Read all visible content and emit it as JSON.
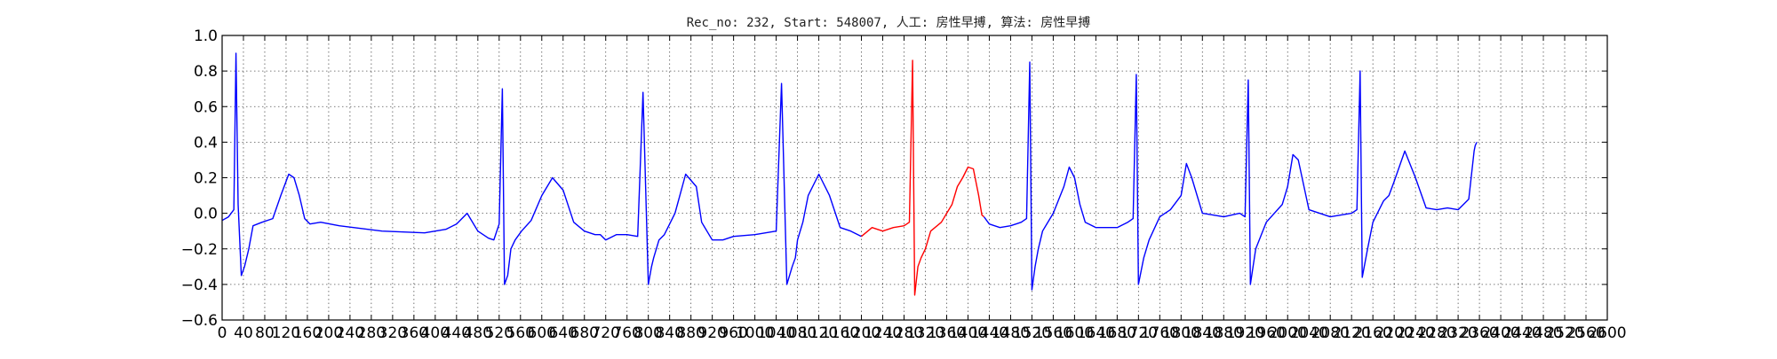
{
  "chart_data": {
    "type": "line",
    "title": "Rec_no: 232, Start: 548007, 人工: 房性早搏, 算法: 房性早搏",
    "xlabel": "",
    "ylabel": "",
    "ylim": [
      -0.6,
      1.0
    ],
    "xlim": [
      0,
      2600
    ],
    "grid": true,
    "y_ticks": [
      "−0.6",
      "−0.4",
      "−0.2",
      "0.0",
      "0.2",
      "0.4",
      "0.6",
      "0.8",
      "1.0"
    ],
    "y_tick_values": [
      -0.6,
      -0.4,
      -0.2,
      0.0,
      0.2,
      0.4,
      0.6,
      0.8,
      1.0
    ],
    "x_ticks": [
      "0",
      "40",
      "80",
      "120",
      "160",
      "200",
      "240",
      "280",
      "320",
      "360",
      "400",
      "440",
      "480",
      "520",
      "560",
      "600",
      "640",
      "680",
      "720",
      "760",
      "800",
      "840",
      "880",
      "920",
      "960",
      "1000",
      "1040",
      "1080",
      "1120",
      "1160",
      "1200",
      "1240",
      "1280",
      "1320",
      "1360",
      "1400",
      "1440",
      "1480",
      "1520",
      "1560",
      "1600",
      "1640",
      "1680",
      "1720",
      "1760",
      "1800",
      "1840",
      "1880",
      "1920",
      "1960",
      "2000",
      "2040",
      "2080",
      "2120",
      "2160",
      "2200",
      "2240",
      "2280",
      "2320",
      "2360",
      "2400",
      "2440",
      "2480",
      "2520",
      "2560",
      "2600"
    ],
    "x_tick_values": [
      0,
      40,
      80,
      120,
      160,
      200,
      240,
      280,
      320,
      360,
      400,
      440,
      480,
      520,
      560,
      600,
      640,
      680,
      720,
      760,
      800,
      840,
      880,
      920,
      960,
      1000,
      1040,
      1080,
      1120,
      1160,
      1200,
      1240,
      1280,
      1320,
      1360,
      1400,
      1440,
      1480,
      1520,
      1560,
      1600,
      1640,
      1680,
      1720,
      1760,
      1800,
      1840,
      1880,
      1920,
      1960,
      2000,
      2040,
      2080,
      2120,
      2160,
      2200,
      2240,
      2280,
      2320,
      2360,
      2400,
      2440,
      2480,
      2520,
      2560,
      2600
    ],
    "series": [
      {
        "color": "#0000ff",
        "x": [
          0,
          12,
          22,
          26,
          30,
          36,
          42,
          50,
          58,
          75,
          95,
          110,
          125,
          135,
          145,
          155,
          165,
          185,
          220,
          300,
          380,
          420,
          440,
          460,
          480,
          500,
          510,
          520,
          526,
          530,
          536,
          542,
          550,
          562,
          580,
          600,
          620,
          640,
          660,
          680,
          700,
          710,
          720,
          740,
          760,
          780,
          790,
          800,
          806,
          810,
          820,
          830,
          850,
          870,
          890,
          900,
          920,
          940,
          960,
          1000,
          1040,
          1050,
          1060,
          1070,
          1076,
          1080,
          1090,
          1100,
          1120,
          1140,
          1160,
          1180,
          1200
        ],
        "y": [
          -0.04,
          -0.02,
          0.02,
          0.9,
          0.05,
          -0.35,
          -0.3,
          -0.2,
          -0.07,
          -0.05,
          -0.03,
          0.1,
          0.22,
          0.2,
          0.1,
          -0.03,
          -0.06,
          -0.05,
          -0.07,
          -0.1,
          -0.11,
          -0.09,
          -0.06,
          0.0,
          -0.1,
          -0.14,
          -0.15,
          -0.06,
          0.7,
          -0.4,
          -0.35,
          -0.2,
          -0.15,
          -0.1,
          -0.04,
          0.1,
          0.2,
          0.13,
          -0.05,
          -0.1,
          -0.12,
          -0.12,
          -0.15,
          -0.12,
          -0.12,
          -0.13,
          0.68,
          -0.4,
          -0.3,
          -0.25,
          -0.15,
          -0.12,
          0.0,
          0.22,
          0.15,
          -0.05,
          -0.15,
          -0.15,
          -0.13,
          -0.12,
          -0.1,
          0.73,
          -0.4,
          -0.3,
          -0.25,
          -0.15,
          -0.05,
          0.1,
          0.22,
          0.1,
          -0.08,
          -0.1,
          -0.13
        ]
      },
      {
        "color": "#ff0000",
        "x": [
          1200,
          1220,
          1240,
          1260,
          1280,
          1290,
          1296,
          1300,
          1306,
          1312,
          1320,
          1330,
          1350,
          1370,
          1380,
          1390,
          1400,
          1410,
          1420,
          1426,
          1430
        ],
        "y": [
          -0.13,
          -0.08,
          -0.1,
          -0.08,
          -0.07,
          -0.05,
          0.86,
          -0.46,
          -0.3,
          -0.25,
          -0.2,
          -0.1,
          -0.05,
          0.05,
          0.15,
          0.2,
          0.26,
          0.25,
          0.1,
          -0.01,
          -0.02
        ]
      },
      {
        "color": "#0000ff",
        "x": [
          1430,
          1440,
          1460,
          1480,
          1500,
          1510,
          1516,
          1520,
          1526,
          1532,
          1540,
          1560,
          1580,
          1590,
          1600,
          1610,
          1620,
          1640,
          1680,
          1700,
          1710,
          1716,
          1720,
          1730,
          1740,
          1760,
          1780,
          1800,
          1810,
          1820,
          1840,
          1880,
          1910,
          1920,
          1926,
          1930,
          1940,
          1960,
          1990,
          2000,
          2010,
          2020,
          2040,
          2080,
          2120,
          2130,
          2136,
          2140,
          2150,
          2160,
          2180,
          2190,
          2200,
          2220,
          2240,
          2260,
          2280,
          2300,
          2320,
          2340,
          2350,
          2352,
          2355
        ],
        "y": [
          -0.02,
          -0.06,
          -0.08,
          -0.07,
          -0.05,
          -0.03,
          0.85,
          -0.43,
          -0.3,
          -0.2,
          -0.1,
          0.0,
          0.15,
          0.26,
          0.2,
          0.05,
          -0.05,
          -0.08,
          -0.08,
          -0.05,
          -0.03,
          0.78,
          -0.4,
          -0.25,
          -0.15,
          -0.02,
          0.02,
          0.1,
          0.28,
          0.2,
          0.0,
          -0.02,
          0.0,
          -0.02,
          0.75,
          -0.4,
          -0.2,
          -0.05,
          0.05,
          0.15,
          0.33,
          0.3,
          0.02,
          -0.02,
          0.0,
          0.02,
          0.8,
          -0.36,
          -0.2,
          -0.05,
          0.07,
          0.1,
          0.18,
          0.35,
          0.2,
          0.03,
          0.02,
          0.03,
          0.02,
          0.08,
          0.35,
          0.38,
          0.4
        ]
      }
    ]
  }
}
